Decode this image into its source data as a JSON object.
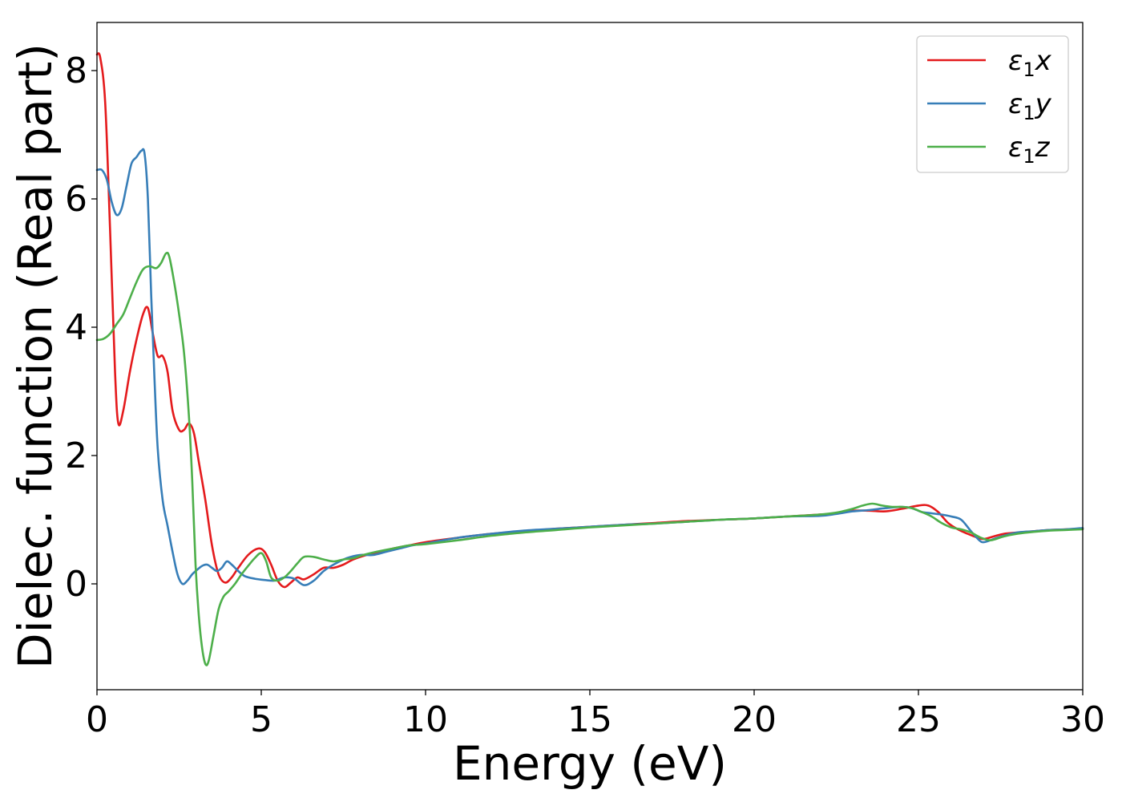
{
  "chart_data": {
    "type": "line",
    "xlabel": "Energy (eV)",
    "ylabel": "Dielec. function (Real part)",
    "xlim": [
      0,
      30
    ],
    "ylim": [
      -1.65,
      8.75
    ],
    "x_ticks": [
      0,
      5,
      10,
      15,
      20,
      25,
      30
    ],
    "x_tick_labels": [
      "0",
      "5",
      "10",
      "15",
      "20",
      "25",
      "30"
    ],
    "y_ticks": [
      0,
      2,
      4,
      6,
      8
    ],
    "y_tick_labels": [
      "0",
      "2",
      "4",
      "6",
      "8"
    ],
    "grid": false,
    "legend_position": "top-right",
    "series": [
      {
        "name": "ε₁x",
        "legend_symbol": "ε",
        "legend_subscript": "1",
        "legend_suffix": "x",
        "color": "#e41a1c",
        "x": [
          0,
          0.1,
          0.25,
          0.4,
          0.55,
          0.65,
          0.8,
          1.0,
          1.2,
          1.4,
          1.55,
          1.7,
          1.85,
          2.0,
          2.15,
          2.3,
          2.5,
          2.65,
          2.8,
          2.95,
          3.1,
          3.3,
          3.5,
          3.7,
          3.9,
          4.1,
          4.3,
          4.6,
          4.9,
          5.1,
          5.3,
          5.5,
          5.7,
          5.9,
          6.1,
          6.3,
          6.6,
          6.9,
          7.2,
          7.5,
          7.8,
          8.2,
          8.6,
          9.0,
          9.5,
          10.0,
          11.0,
          12.0,
          13.0,
          14.0,
          15.0,
          16.0,
          17.0,
          18.0,
          19.0,
          20.0,
          21.0,
          22.0,
          22.5,
          23.0,
          23.5,
          24.0,
          24.5,
          25.0,
          25.3,
          25.6,
          25.9,
          26.2,
          26.5,
          26.8,
          27.0,
          27.3,
          27.6,
          28.0,
          28.5,
          29.0,
          29.5,
          30.0
        ],
        "y": [
          8.25,
          8.2,
          7.5,
          5.5,
          3.3,
          2.5,
          2.7,
          3.3,
          3.8,
          4.2,
          4.3,
          3.9,
          3.55,
          3.55,
          3.3,
          2.7,
          2.4,
          2.4,
          2.5,
          2.35,
          1.9,
          1.3,
          0.6,
          0.15,
          0.02,
          0.1,
          0.25,
          0.45,
          0.55,
          0.5,
          0.3,
          0.05,
          -0.05,
          0.02,
          0.1,
          0.07,
          0.15,
          0.25,
          0.25,
          0.3,
          0.38,
          0.45,
          0.5,
          0.55,
          0.6,
          0.65,
          0.72,
          0.78,
          0.82,
          0.86,
          0.89,
          0.92,
          0.95,
          0.98,
          1.0,
          1.02,
          1.05,
          1.08,
          1.1,
          1.14,
          1.14,
          1.13,
          1.17,
          1.22,
          1.22,
          1.12,
          0.95,
          0.85,
          0.78,
          0.72,
          0.7,
          0.74,
          0.78,
          0.8,
          0.82,
          0.84,
          0.85,
          0.86
        ]
      },
      {
        "name": "ε₁y",
        "legend_symbol": "ε",
        "legend_subscript": "1",
        "legend_suffix": "y",
        "color": "#377eb8",
        "x": [
          0,
          0.15,
          0.3,
          0.45,
          0.6,
          0.75,
          0.9,
          1.05,
          1.2,
          1.35,
          1.45,
          1.55,
          1.65,
          1.75,
          1.85,
          2.0,
          2.15,
          2.3,
          2.45,
          2.6,
          2.75,
          2.9,
          3.05,
          3.2,
          3.35,
          3.5,
          3.65,
          3.8,
          3.95,
          4.1,
          4.3,
          4.5,
          4.8,
          5.1,
          5.4,
          5.7,
          6.0,
          6.3,
          6.6,
          6.9,
          7.2,
          7.6,
          8.0,
          8.4,
          8.8,
          9.2,
          9.6,
          10.0,
          11.0,
          12.0,
          13.0,
          14.0,
          15.0,
          16.0,
          17.0,
          18.0,
          19.0,
          20.0,
          21.0,
          22.0,
          22.5,
          23.0,
          23.5,
          24.0,
          24.5,
          24.8,
          25.1,
          25.4,
          25.7,
          26.0,
          26.3,
          26.6,
          26.85,
          27.0,
          27.3,
          27.6,
          28.0,
          28.5,
          29.0,
          29.5,
          30.0
        ],
        "y": [
          6.45,
          6.45,
          6.3,
          5.95,
          5.75,
          5.85,
          6.2,
          6.55,
          6.65,
          6.75,
          6.7,
          6.0,
          4.5,
          3.2,
          2.1,
          1.3,
          0.9,
          0.5,
          0.15,
          0.0,
          0.05,
          0.15,
          0.22,
          0.28,
          0.3,
          0.25,
          0.2,
          0.25,
          0.35,
          0.3,
          0.2,
          0.12,
          0.08,
          0.06,
          0.05,
          0.1,
          0.08,
          -0.02,
          0.05,
          0.2,
          0.3,
          0.4,
          0.45,
          0.45,
          0.5,
          0.55,
          0.6,
          0.63,
          0.72,
          0.78,
          0.83,
          0.86,
          0.89,
          0.92,
          0.94,
          0.97,
          1.0,
          1.02,
          1.05,
          1.06,
          1.09,
          1.13,
          1.15,
          1.18,
          1.2,
          1.18,
          1.12,
          1.1,
          1.08,
          1.05,
          1.0,
          0.82,
          0.68,
          0.65,
          0.7,
          0.75,
          0.8,
          0.82,
          0.84,
          0.85,
          0.87
        ]
      },
      {
        "name": "ε₁z",
        "legend_symbol": "ε",
        "legend_subscript": "1",
        "legend_suffix": "z",
        "color": "#4daf4a",
        "x": [
          0,
          0.2,
          0.4,
          0.6,
          0.8,
          1.0,
          1.2,
          1.4,
          1.6,
          1.8,
          1.95,
          2.1,
          2.2,
          2.35,
          2.5,
          2.65,
          2.8,
          2.9,
          3.0,
          3.1,
          3.2,
          3.3,
          3.4,
          3.55,
          3.7,
          3.85,
          4.0,
          4.2,
          4.4,
          4.6,
          4.8,
          5.0,
          5.15,
          5.3,
          5.5,
          5.7,
          5.9,
          6.1,
          6.3,
          6.6,
          6.9,
          7.2,
          7.5,
          7.8,
          8.1,
          8.5,
          9.0,
          9.5,
          10.0,
          11.0,
          12.0,
          13.0,
          14.0,
          15.0,
          16.0,
          17.0,
          18.0,
          19.0,
          20.0,
          21.0,
          22.0,
          22.5,
          23.0,
          23.3,
          23.6,
          23.9,
          24.2,
          24.5,
          24.8,
          25.1,
          25.4,
          25.7,
          26.0,
          26.3,
          26.6,
          26.9,
          27.2,
          27.6,
          28.0,
          28.5,
          29.0,
          29.5,
          30.0
        ],
        "y": [
          3.8,
          3.82,
          3.9,
          4.05,
          4.2,
          4.45,
          4.7,
          4.9,
          4.95,
          4.92,
          5.0,
          5.15,
          5.1,
          4.7,
          4.2,
          3.6,
          2.6,
          1.6,
          0.3,
          -0.5,
          -1.0,
          -1.25,
          -1.2,
          -0.8,
          -0.4,
          -0.2,
          -0.12,
          0.0,
          0.15,
          0.28,
          0.4,
          0.48,
          0.35,
          0.1,
          0.05,
          0.1,
          0.2,
          0.32,
          0.42,
          0.42,
          0.38,
          0.35,
          0.38,
          0.4,
          0.45,
          0.5,
          0.55,
          0.6,
          0.62,
          0.68,
          0.75,
          0.8,
          0.84,
          0.88,
          0.91,
          0.94,
          0.97,
          1.0,
          1.02,
          1.05,
          1.08,
          1.11,
          1.17,
          1.22,
          1.25,
          1.22,
          1.2,
          1.2,
          1.18,
          1.12,
          1.05,
          0.95,
          0.88,
          0.85,
          0.8,
          0.72,
          0.68,
          0.74,
          0.78,
          0.81,
          0.83,
          0.84,
          0.85
        ]
      }
    ]
  }
}
